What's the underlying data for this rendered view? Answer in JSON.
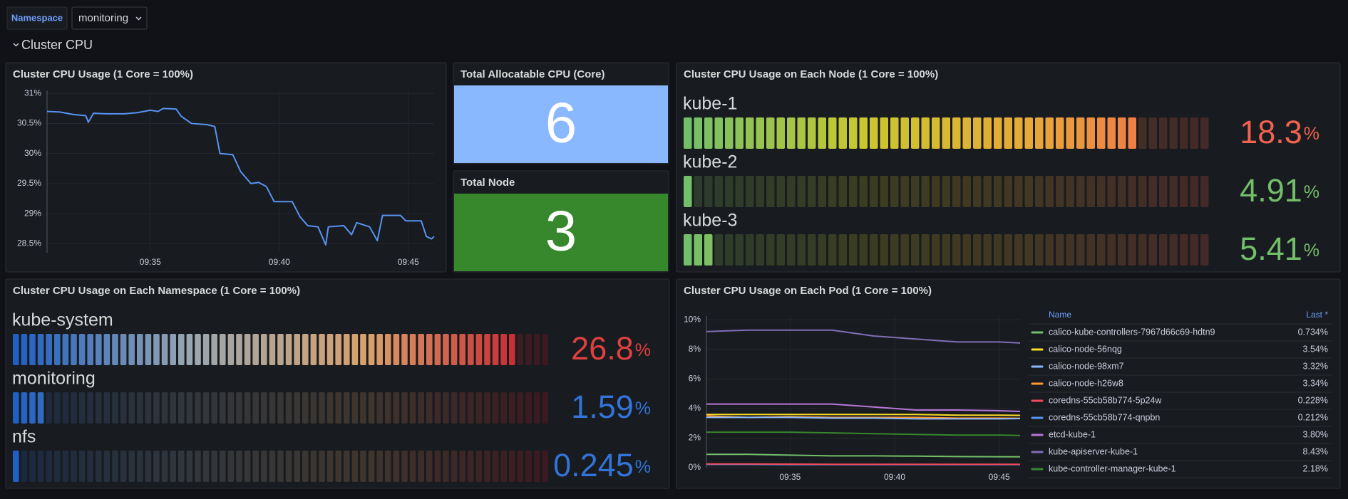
{
  "header": {
    "namespace_label": "Namespace",
    "namespace_value": "monitoring",
    "row_title": "Cluster CPU"
  },
  "chart_data": [
    {
      "type": "line",
      "title": "Cluster CPU Usage (1 Core = 100%)",
      "x": [
        31.0,
        31.5,
        32.0,
        32.5,
        32.6,
        32.8,
        33.3,
        34.0,
        34.5,
        35.0,
        35.3,
        35.5,
        36.0,
        36.2,
        36.6,
        37.2,
        37.5,
        37.7,
        38.2,
        38.5,
        38.9,
        39.2,
        39.5,
        39.8,
        40.5,
        40.8,
        41.1,
        41.5,
        41.8,
        41.9,
        42.5,
        42.8,
        43.0,
        43.5,
        43.8,
        44.0,
        44.7,
        44.9,
        45.5,
        45.7,
        45.9,
        46.0
      ],
      "values": [
        30.7,
        30.69,
        30.65,
        30.63,
        30.52,
        30.67,
        30.66,
        30.66,
        30.68,
        30.72,
        30.7,
        30.75,
        30.74,
        30.62,
        30.5,
        30.48,
        30.45,
        30.0,
        29.98,
        29.7,
        29.5,
        29.52,
        29.45,
        29.2,
        29.2,
        28.95,
        28.8,
        28.78,
        28.48,
        28.78,
        28.8,
        28.65,
        28.85,
        28.78,
        28.55,
        28.97,
        28.97,
        28.88,
        28.88,
        28.62,
        28.58,
        28.62
      ],
      "color": "#5794f2",
      "xlim": [
        31,
        46
      ],
      "xticks": [
        {
          "value": 35,
          "label": "09:35"
        },
        {
          "value": 40,
          "label": "09:40"
        },
        {
          "value": 45,
          "label": "09:45"
        }
      ],
      "ylim": [
        28.35,
        31.05
      ],
      "yticks": [
        {
          "value": 28.5,
          "label": "28.5%"
        },
        {
          "value": 29,
          "label": "29%"
        },
        {
          "value": 29.5,
          "label": "29.5%"
        },
        {
          "value": 30,
          "label": "30%"
        },
        {
          "value": 30.5,
          "label": "30.5%"
        },
        {
          "value": 31,
          "label": "31%"
        }
      ],
      "grid": true
    },
    {
      "type": "stat",
      "title": "Total Allocatable CPU (Core)",
      "value": 6,
      "color": "#8ab8ff"
    },
    {
      "type": "stat",
      "title": "Total Node",
      "value": 3,
      "color": "#37872d"
    },
    {
      "type": "bargauge",
      "title": "Cluster CPU Usage on Each Node (1 Core = 100%)",
      "categories": [
        "kube-1",
        "kube-2",
        "kube-3"
      ],
      "values": [
        18.3,
        4.91,
        5.41
      ],
      "unit": "%",
      "value_colors": [
        "#f2634f",
        "#73bf69",
        "#73bf69"
      ],
      "xlim": [
        4.7,
        20.5
      ],
      "gradient": [
        "#73bf69",
        "#c8c82e",
        "#e8a838",
        "#f2634f"
      ]
    },
    {
      "type": "bargauge",
      "title": "Cluster CPU Usage on Each Namespace (1 Core = 100%)",
      "categories": [
        "kube-system",
        "monitoring",
        "nfs"
      ],
      "values": [
        26.8,
        1.59,
        0.245
      ],
      "unit": "%",
      "value_colors": [
        "#e0403e",
        "#3274d9",
        "#3274d9"
      ],
      "xlim": [
        0.2,
        28.6
      ],
      "gradient": [
        "#1f60c4",
        "#9aa7b0",
        "#d9a06a",
        "#c4162a"
      ]
    },
    {
      "type": "line",
      "title": "Cluster CPU Usage on Each Pod (1 Core = 100%)",
      "x": [
        31,
        33,
        35,
        37,
        39,
        41,
        43,
        45,
        46
      ],
      "series": [
        {
          "name": "calico-kube-controllers-7967d66c69-hdtn9",
          "color": "#73bf69",
          "values": [
            0.9,
            0.9,
            0.85,
            0.8,
            0.8,
            0.78,
            0.75,
            0.74,
            0.734
          ],
          "last": {
            "value": 0.734,
            "label": "0.734%"
          }
        },
        {
          "name": "calico-node-56nqg",
          "color": "#fade2a",
          "values": [
            3.6,
            3.6,
            3.6,
            3.6,
            3.6,
            3.6,
            3.55,
            3.55,
            3.54
          ],
          "last": {
            "value": 3.54,
            "label": "3.54%"
          }
        },
        {
          "name": "calico-node-98xm7",
          "color": "#8ab8ff",
          "values": [
            3.4,
            3.4,
            3.4,
            3.35,
            3.35,
            3.3,
            3.3,
            3.3,
            3.32
          ],
          "last": {
            "value": 3.32,
            "label": "3.32%"
          }
        },
        {
          "name": "calico-node-h26w8",
          "color": "#ff9830",
          "values": [
            3.5,
            3.4,
            3.45,
            3.4,
            3.4,
            3.4,
            3.35,
            3.35,
            3.34
          ],
          "last": {
            "value": 3.34,
            "label": "3.34%"
          }
        },
        {
          "name": "coredns-55cb58b774-5p24w",
          "color": "#f2495c",
          "values": [
            0.25,
            0.25,
            0.24,
            0.23,
            0.23,
            0.23,
            0.23,
            0.23,
            0.228
          ],
          "last": {
            "value": 0.228,
            "label": "0.228%"
          }
        },
        {
          "name": "coredns-55cb58b774-qnpbn",
          "color": "#5794f2",
          "values": [
            0.22,
            0.22,
            0.21,
            0.21,
            0.21,
            0.21,
            0.21,
            0.21,
            0.212
          ],
          "last": {
            "value": 0.212,
            "label": "0.212%"
          }
        },
        {
          "name": "etcd-kube-1",
          "color": "#b877d9",
          "values": [
            4.3,
            4.3,
            4.3,
            4.3,
            4.1,
            3.9,
            3.9,
            3.85,
            3.8
          ],
          "last": {
            "value": 3.8,
            "label": "3.80%"
          }
        },
        {
          "name": "kube-apiserver-kube-1",
          "color": "#806eb7",
          "values": [
            9.2,
            9.3,
            9.3,
            9.3,
            8.9,
            8.7,
            8.5,
            8.5,
            8.43
          ],
          "last": {
            "value": 8.43,
            "label": "8.43%"
          }
        },
        {
          "name": "kube-controller-manager-kube-1",
          "color": "#37872d",
          "values": [
            2.4,
            2.4,
            2.4,
            2.35,
            2.3,
            2.25,
            2.2,
            2.2,
            2.18
          ],
          "last": {
            "value": 2.18,
            "label": "2.18%"
          }
        }
      ],
      "legend_header": [
        "Name",
        "Last *"
      ],
      "xlim": [
        31,
        46
      ],
      "xticks": [
        {
          "value": 35,
          "label": "09:35"
        },
        {
          "value": 40,
          "label": "09:40"
        },
        {
          "value": 45,
          "label": "09:45"
        }
      ],
      "ylim": [
        0,
        10.25
      ],
      "yticks": [
        {
          "value": 0,
          "label": "0%"
        },
        {
          "value": 2,
          "label": "2%"
        },
        {
          "value": 4,
          "label": "4%"
        },
        {
          "value": 6,
          "label": "6%"
        },
        {
          "value": 8,
          "label": "8%"
        },
        {
          "value": 10,
          "label": "10%"
        }
      ],
      "grid": true
    }
  ]
}
